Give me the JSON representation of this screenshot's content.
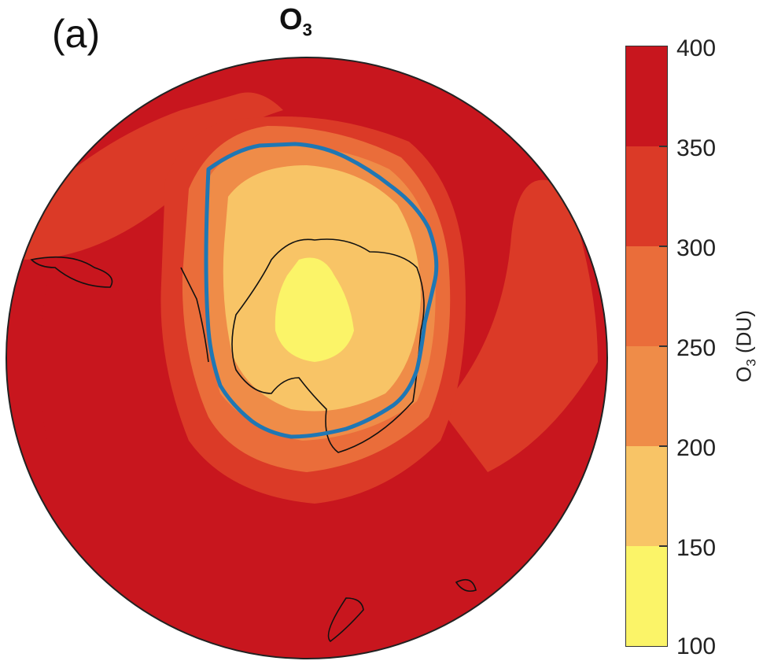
{
  "panel_label": "(a)",
  "title": {
    "main": "O",
    "sub": "3"
  },
  "colorbar": {
    "label_main": "O",
    "label_sub": "3",
    "label_units": " (DU)",
    "ticks": [
      "400",
      "350",
      "300",
      "250",
      "200",
      "150",
      "100"
    ],
    "range": [
      100,
      400
    ],
    "bins": [
      {
        "from": 350,
        "to": 400,
        "color": "#c8161e"
      },
      {
        "from": 300,
        "to": 350,
        "color": "#db3a27"
      },
      {
        "from": 250,
        "to": 300,
        "color": "#ea6d3a"
      },
      {
        "from": 200,
        "to": 250,
        "color": "#ef8c48"
      },
      {
        "from": 150,
        "to": 200,
        "color": "#f8c466"
      },
      {
        "from": 100,
        "to": 150,
        "color": "#fbf468"
      }
    ]
  },
  "map": {
    "projection": "polar",
    "hemisphere": "south",
    "contour_color": "#1f77b4",
    "coast_color": "#111111"
  }
}
